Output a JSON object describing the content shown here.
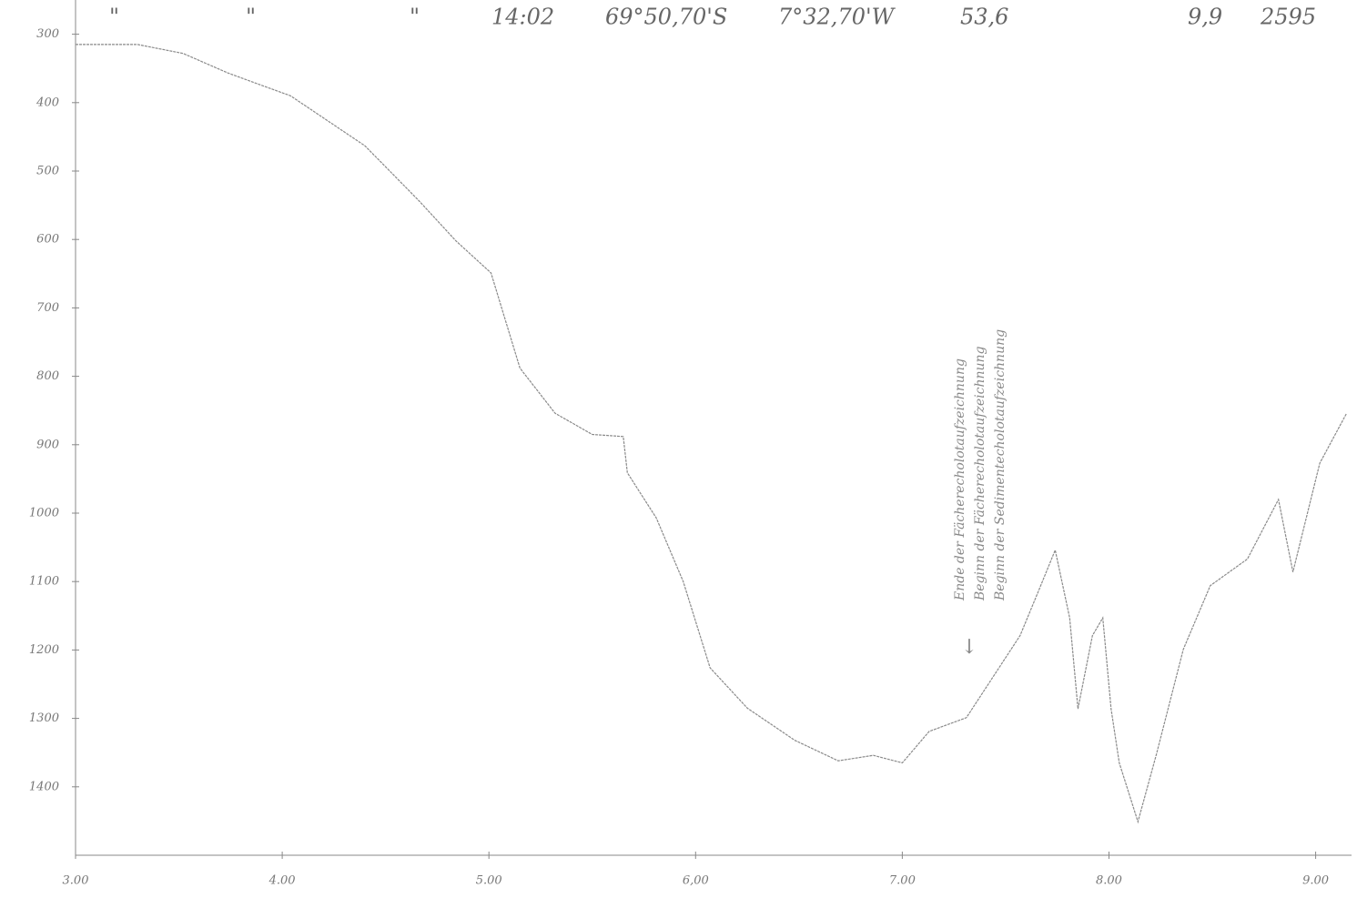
{
  "chart_data": {
    "type": "line",
    "header": [
      "\"",
      "\"",
      "\"",
      "14:02",
      "69°50,70'S",
      "7°32,70'W",
      "53,6",
      "9,9",
      "2595"
    ],
    "annotation_lines": [
      "Ende der Fächerecholotaufzeichnung",
      "Beginn der Fächerecholotaufzeichnung",
      "Beginn der Sedimentecholotaufzeichnung"
    ],
    "annotation_arrow": "↓",
    "x": [
      3.0,
      3.3,
      3.52,
      3.74,
      4.04,
      4.4,
      4.66,
      4.84,
      5.01,
      5.15,
      5.32,
      5.5,
      5.65,
      5.67,
      5.81,
      5.94,
      6.07,
      6.25,
      6.48,
      6.69,
      6.86,
      7.0,
      7.13,
      7.31,
      7.44,
      7.57,
      7.66,
      7.74,
      7.81,
      7.85,
      7.92,
      7.97,
      8.01,
      8.05,
      8.14,
      8.23,
      8.36,
      8.49,
      8.67,
      8.82,
      8.89,
      9.02,
      9.15
    ],
    "values": [
      315,
      315,
      328,
      357,
      390,
      463,
      543,
      602,
      649,
      788,
      854,
      885,
      888,
      941,
      1007,
      1100,
      1226,
      1285,
      1332,
      1362,
      1354,
      1365,
      1319,
      1299,
      1239,
      1179,
      1113,
      1054,
      1153,
      1286,
      1179,
      1153,
      1286,
      1365,
      1451,
      1352,
      1199,
      1106,
      1067,
      980,
      1086,
      927,
      854
    ],
    "color": "#8a8a8a",
    "xlim": [
      3,
      9.2
    ],
    "ylim": [
      1500,
      250
    ],
    "xticks": [
      {
        "value": 3,
        "label": "3.00"
      },
      {
        "value": 4,
        "label": "4.00"
      },
      {
        "value": 5,
        "label": "5.00"
      },
      {
        "value": 6,
        "label": "6,00"
      },
      {
        "value": 7,
        "label": "7.00"
      },
      {
        "value": 8,
        "label": "8.00"
      },
      {
        "value": 9,
        "label": "9.00"
      }
    ],
    "yticks": [
      300,
      400,
      500,
      600,
      700,
      800,
      900,
      1000,
      1100,
      1200,
      1300,
      1400
    ]
  }
}
